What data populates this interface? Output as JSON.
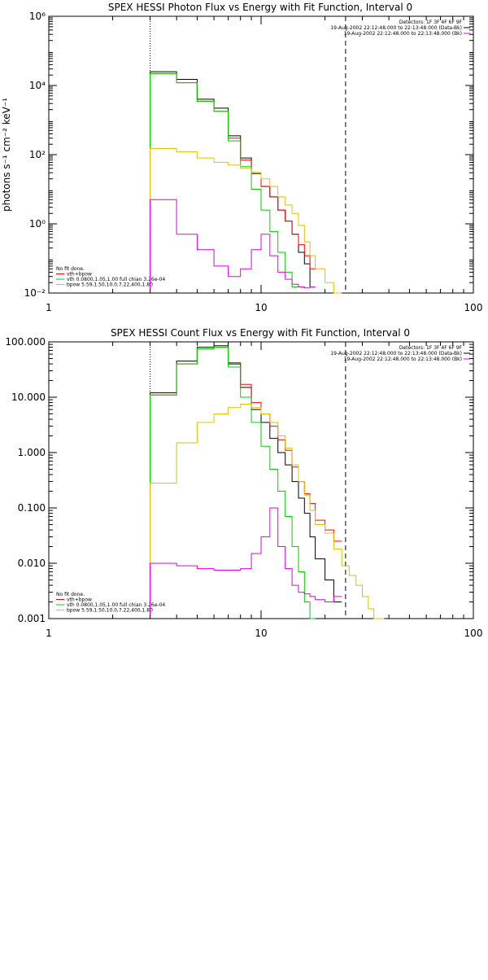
{
  "colors": {
    "data": "#000000",
    "total_fit": "#ff0000",
    "vth": "#00d000",
    "bpow": "#e0c000",
    "background": "#e000e0"
  },
  "chart_data": [
    {
      "type": "line",
      "title": "SPEX HESSI Photon Flux vs Energy with Fit Function, Interval 0",
      "xlabel": "",
      "ylabel": "photons s⁻¹ cm⁻² keV⁻¹",
      "xscale": "log",
      "yscale": "log",
      "xlim": [
        1,
        100
      ],
      "ylim": [
        0.01,
        1000000
      ],
      "x_ticks": [
        "1",
        "10",
        "100"
      ],
      "y_ticks": [
        "10⁻²",
        "10⁰",
        "10²",
        "10⁴",
        "10⁶"
      ],
      "vlines": [
        3,
        25
      ],
      "header": [
        "Detectors: 1F 3F 4F 6F 9F",
        "19-Aug-2002 22:12:48.000 to 22:13:48.000 (Data-Bk)",
        "19-Aug-2002 22:12:48.000 to 22:13:48.000 (Bk)"
      ],
      "legend": [
        "No fit done.",
        "vth+bpow",
        "vth 0.0800,1.05,1.00  full chian 3.26e-04",
        "bpow 5.59,1.50,10.0,7.22,400,1.80"
      ],
      "bin_edges": [
        3,
        4,
        5,
        6,
        7,
        8,
        9,
        10,
        11,
        12,
        13,
        14,
        15,
        16,
        17,
        18,
        20,
        22,
        24,
        26,
        28,
        30,
        32
      ],
      "series": [
        {
          "name": "Data-Bk",
          "color": "#000000",
          "values": [
            25000,
            15000,
            4000,
            2200,
            350,
            80,
            30,
            12,
            6,
            2.5,
            1.2,
            0.5,
            0.15,
            0.07,
            0.015
          ]
        },
        {
          "name": "vth+bpow",
          "color": "#ff0000",
          "values": [
            22000,
            12000,
            3500,
            1800,
            300,
            70,
            28,
            12,
            6,
            2.5,
            1.2,
            0.5,
            0.25,
            0.12,
            0.05
          ]
        },
        {
          "name": "vth",
          "color": "#00d000",
          "values": [
            22000,
            12000,
            3500,
            1800,
            250,
            45,
            10,
            2.5,
            0.6,
            0.15,
            0.04,
            0.015
          ]
        },
        {
          "name": "bpow",
          "color": "#e0c000",
          "values": [
            150,
            120,
            80,
            60,
            50,
            40,
            30,
            20,
            12,
            6,
            3.5,
            2,
            0.9,
            0.3,
            0.12,
            0.05,
            0.02,
            0.01
          ]
        },
        {
          "name": "Bk",
          "color": "#e000e0",
          "values": [
            5,
            0.5,
            0.18,
            0.06,
            0.03,
            0.05,
            0.18,
            0.5,
            0.12,
            0.04,
            0.025,
            0.018,
            0.015,
            0.014,
            0.015
          ]
        }
      ]
    },
    {
      "type": "line",
      "title": "SPEX HESSI Count Flux vs Energy with Fit Function, Interval 0",
      "xlabel": "",
      "ylabel": "",
      "xscale": "log",
      "yscale": "log",
      "xlim": [
        1,
        100
      ],
      "ylim": [
        0.001,
        100
      ],
      "x_ticks": [
        "1",
        "10",
        "100"
      ],
      "y_ticks": [
        "0.001",
        "0.010",
        "0.100",
        "1.000",
        "10.000",
        "100.000"
      ],
      "vlines": [
        3,
        25
      ],
      "header": [
        "Detectors: 1F 3F 4F 6F 9F",
        "19-Aug-2002 22:12:48.000 to 22:13:48.000 (Data-Bk)",
        "19-Aug-2002 22:12:48.000 to 22:13:48.000 (Bk)"
      ],
      "legend": [
        "No fit done.",
        "vth+bpow",
        "vth 0.0800,1.05,1.00  full chian 3.26e-04",
        "bpow 5.59,1.50,10.0,7.22,400,1.80"
      ],
      "bin_edges": [
        3,
        4,
        5,
        6,
        7,
        8,
        9,
        10,
        11,
        12,
        13,
        14,
        15,
        16,
        17,
        18,
        20,
        22,
        24,
        26,
        28,
        30,
        32,
        34,
        36,
        38
      ],
      "series": [
        {
          "name": "Data-Bk",
          "color": "#000000",
          "values": [
            12,
            45,
            80,
            85,
            40,
            15,
            6,
            3.5,
            1.8,
            1.0,
            0.6,
            0.3,
            0.15,
            0.08,
            0.03,
            0.012,
            0.005,
            0.002
          ]
        },
        {
          "name": "vth+bpow",
          "color": "#ff0000",
          "values": [
            11,
            40,
            75,
            80,
            42,
            17,
            8,
            5,
            3,
            1.7,
            1.1,
            0.55,
            0.3,
            0.18,
            0.12,
            0.06,
            0.04,
            0.025
          ]
        },
        {
          "name": "vth",
          "color": "#00d000",
          "values": [
            11,
            40,
            75,
            80,
            35,
            10,
            3.5,
            1.3,
            0.5,
            0.2,
            0.07,
            0.02,
            0.007,
            0.002,
            0.001
          ]
        },
        {
          "name": "bpow",
          "color": "#e0c000",
          "values": [
            0.28,
            1.5,
            3.5,
            5.0,
            6.5,
            7.5,
            6.5,
            5.0,
            3.5,
            2.0,
            1.2,
            0.6,
            0.3,
            0.17,
            0.09,
            0.05,
            0.035,
            0.018,
            0.009,
            0.006,
            0.004,
            0.0025,
            0.0015,
            0.001,
            0.001
          ]
        },
        {
          "name": "Bk",
          "color": "#e000e0",
          "values": [
            0.01,
            0.009,
            0.008,
            0.0075,
            0.0075,
            0.008,
            0.015,
            0.03,
            0.1,
            0.02,
            0.008,
            0.004,
            0.003,
            0.0028,
            0.0025,
            0.0022,
            0.002,
            0.0025
          ]
        }
      ]
    }
  ]
}
